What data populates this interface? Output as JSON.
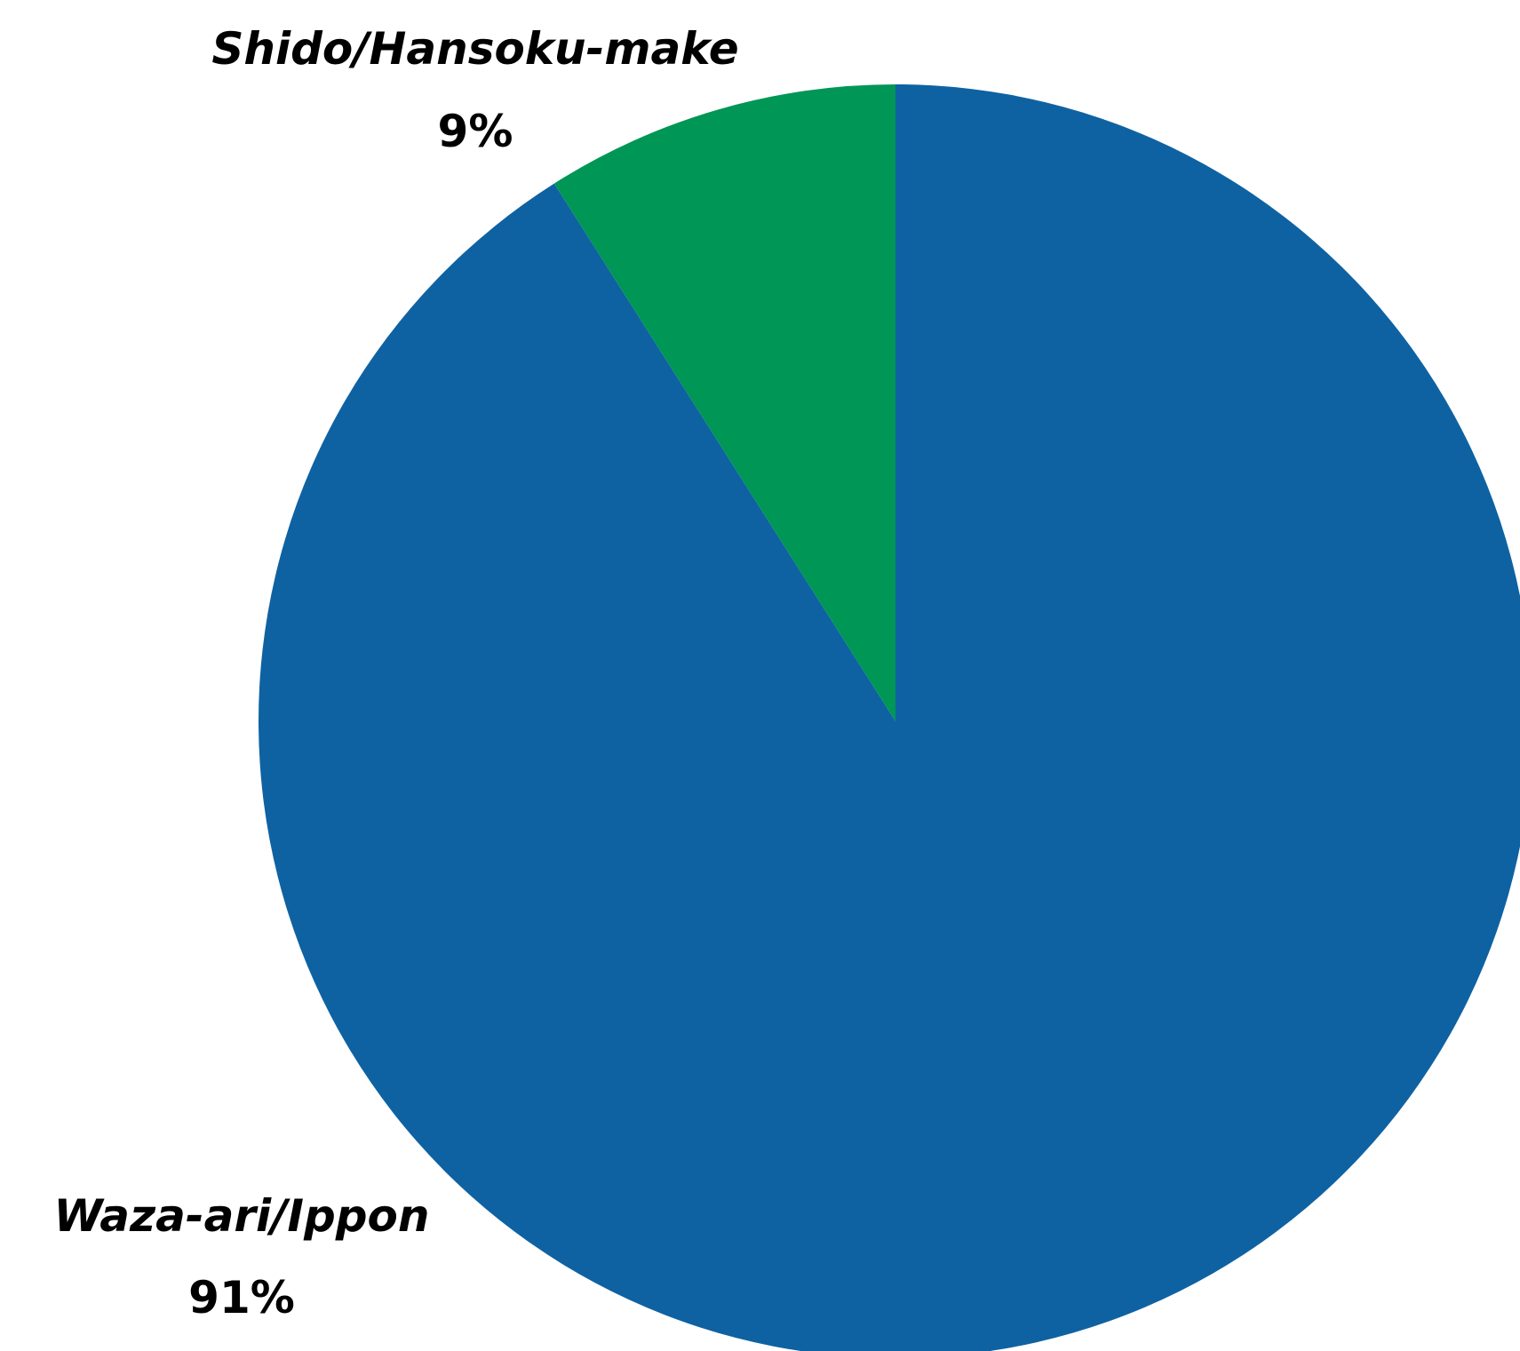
{
  "chart_data": {
    "type": "pie",
    "title": "",
    "slices": [
      {
        "label": "Waza-ari/Ippon",
        "value": 91,
        "display": "91%",
        "color": "#0E62A2"
      },
      {
        "label": "Shido/Hansoku-make",
        "value": 9,
        "display": "9%",
        "color": "#009656"
      }
    ],
    "start_angle_deg": 0,
    "direction": "clockwise",
    "legend": "none"
  }
}
